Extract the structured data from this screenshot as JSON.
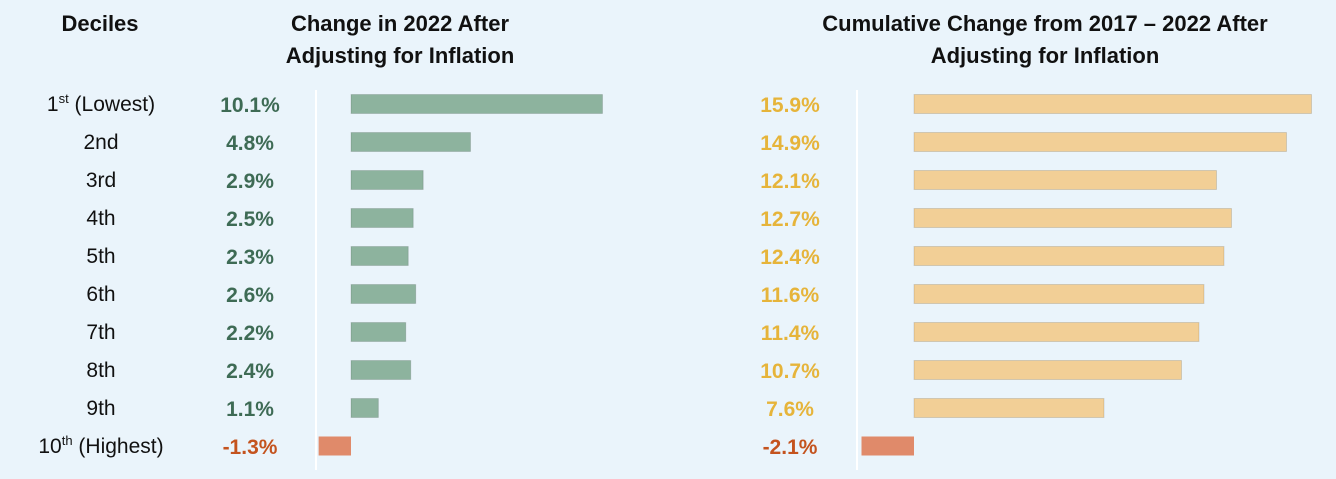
{
  "headers": {
    "deciles": "Deciles",
    "change_2022": "Change in 2022 After Adjusting for Inflation",
    "cumulative": "Cumulative Change from 2017 – 2022 After Adjusting for Inflation"
  },
  "colors": {
    "background": "#eaf4fb",
    "green_bar": "#8db39e",
    "green_text": "#3e6b55",
    "gold_bar": "#f2cf96",
    "gold_text": "#e6b43a",
    "negative": "#e08a6a",
    "negative_text": "#c4531e",
    "axis": "#ffffff"
  },
  "chart_data": [
    {
      "type": "bar",
      "orientation": "horizontal",
      "title": "Change in 2022 After Adjusting for Inflation",
      "categories": [
        {
          "main": "1",
          "sup": "st",
          "tail": " (Lowest)"
        },
        {
          "main": "2nd",
          "sup": "",
          "tail": ""
        },
        {
          "main": "3rd",
          "sup": "",
          "tail": ""
        },
        {
          "main": "4th",
          "sup": "",
          "tail": ""
        },
        {
          "main": "5th",
          "sup": "",
          "tail": ""
        },
        {
          "main": "6th",
          "sup": "",
          "tail": ""
        },
        {
          "main": "7th",
          "sup": "",
          "tail": ""
        },
        {
          "main": "8th",
          "sup": "",
          "tail": ""
        },
        {
          "main": "9th",
          "sup": "",
          "tail": ""
        },
        {
          "main": "10",
          "sup": "th",
          "tail": " (Highest)"
        }
      ],
      "values": [
        10.1,
        4.8,
        2.9,
        2.5,
        2.3,
        2.6,
        2.2,
        2.4,
        1.1,
        -1.3
      ],
      "labels": [
        "10.1%",
        "4.8%",
        "2.9%",
        "2.5%",
        "2.3%",
        "2.6%",
        "2.2%",
        "2.4%",
        "1.1%",
        "-1.3%"
      ]
    },
    {
      "type": "bar",
      "orientation": "horizontal",
      "title": "Cumulative Change from 2017 – 2022 After Adjusting for Inflation",
      "categories": [
        "1st (Lowest)",
        "2nd",
        "3rd",
        "4th",
        "5th",
        "6th",
        "7th",
        "8th",
        "9th",
        "10th (Highest)"
      ],
      "values": [
        15.9,
        14.9,
        12.1,
        12.7,
        12.4,
        11.6,
        11.4,
        10.7,
        7.6,
        -2.1
      ],
      "labels": [
        "15.9%",
        "14.9%",
        "12.1%",
        "12.7%",
        "12.4%",
        "11.6%",
        "11.4%",
        "10.7%",
        "7.6%",
        "-2.1%"
      ]
    }
  ]
}
